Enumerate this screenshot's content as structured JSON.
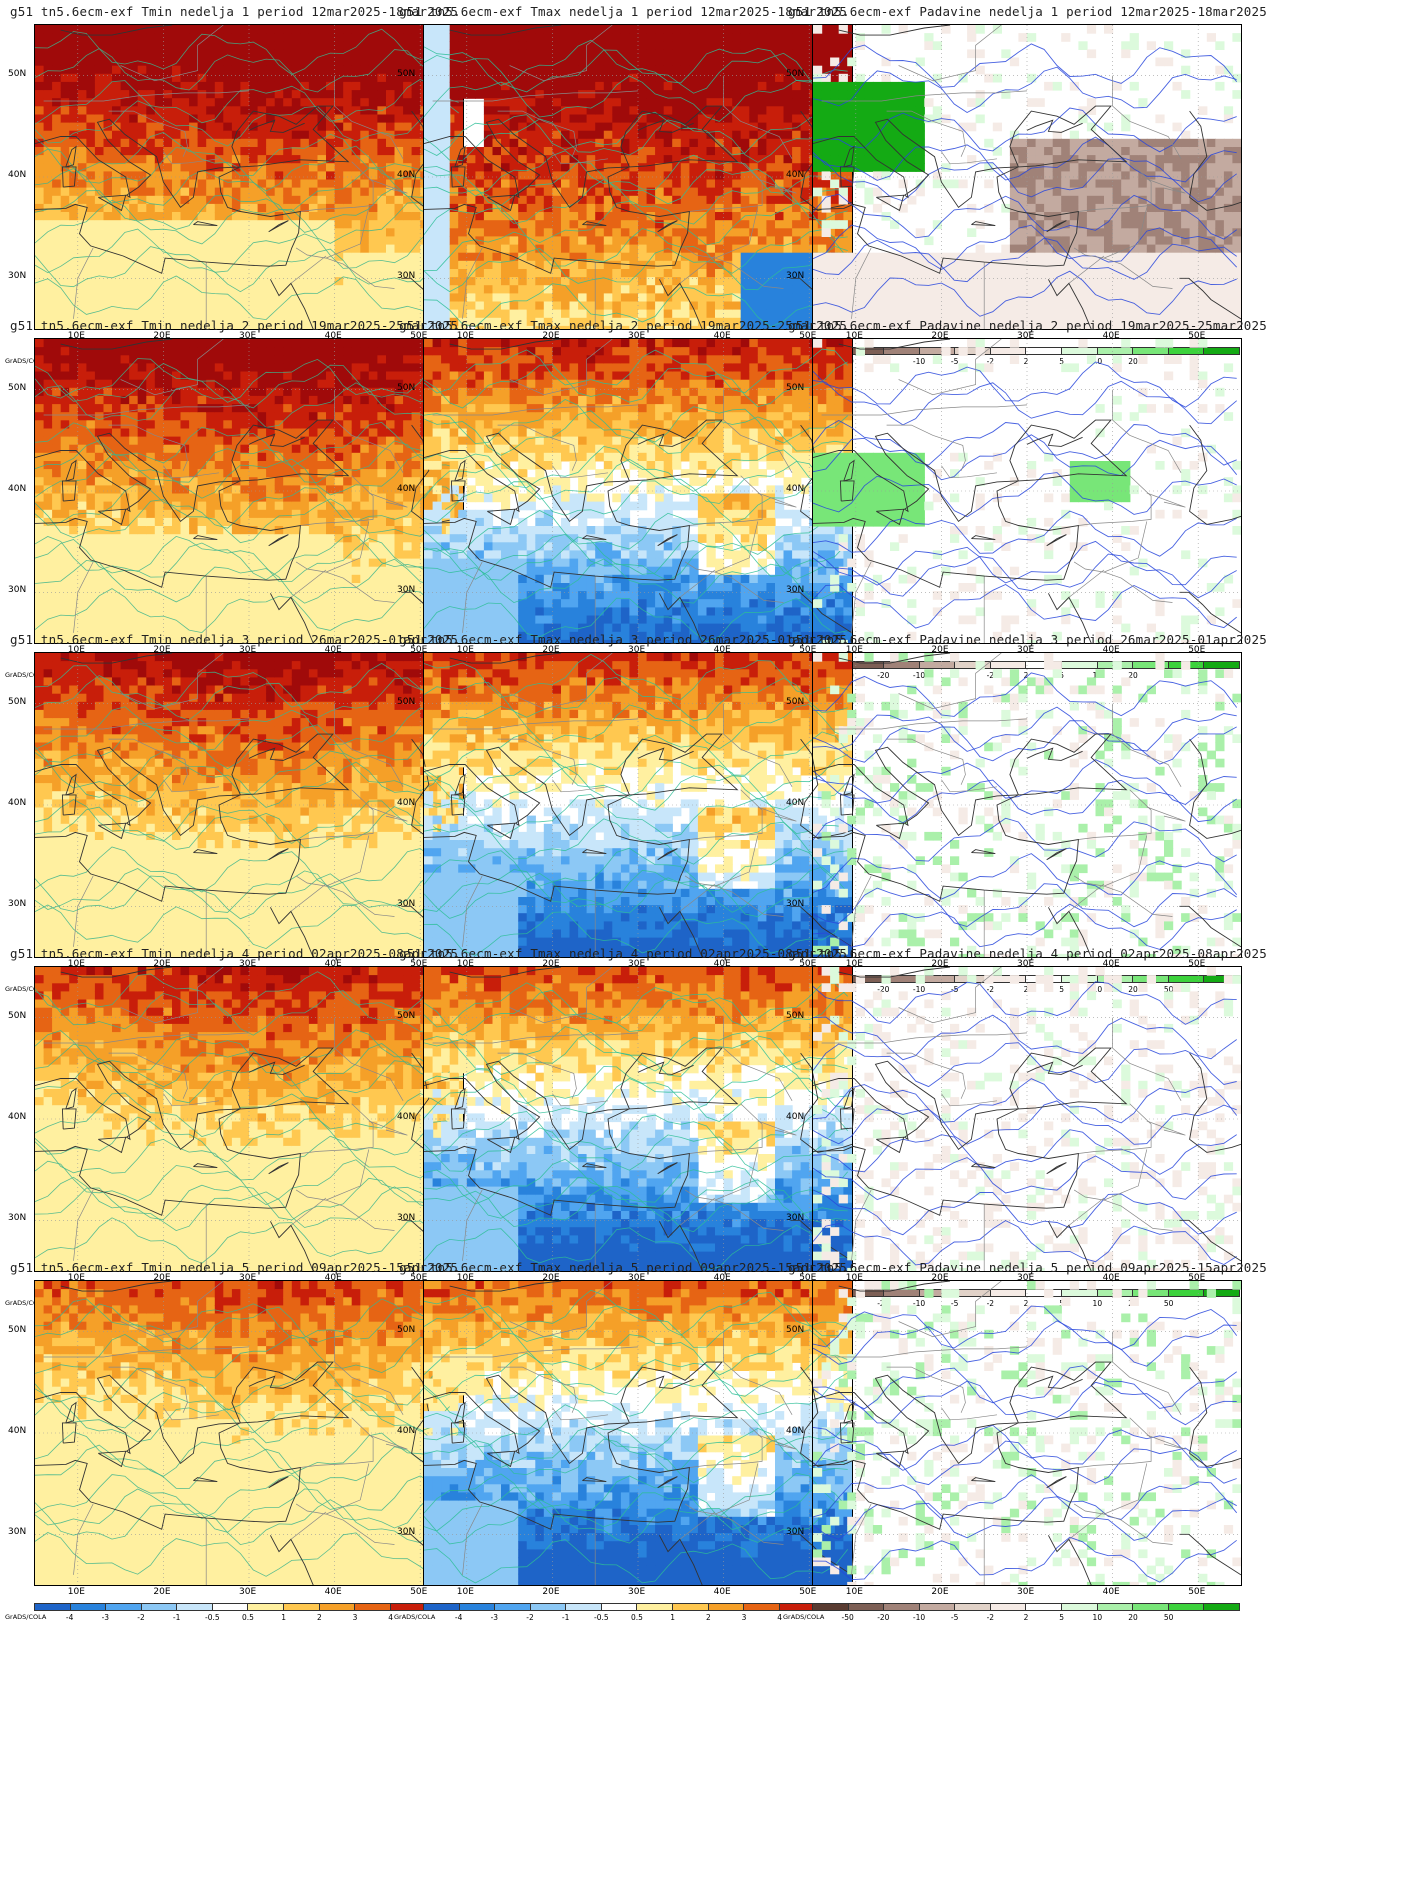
{
  "panels": [
    {
      "title": "g51  tn5.6ecm-exf Tmin nedelja 1 period 12mar2025-18mar2025",
      "type": "tmin",
      "variant": 1
    },
    {
      "title": "g51  tn5.6ecm-exf Tmax nedelja 1 period 12mar2025-18mar2025",
      "type": "tmax",
      "variant": 1
    },
    {
      "title": "g51  tn5.6ecm-exf Padavine nedelja 1 period 12mar2025-18mar2025",
      "type": "prec",
      "variant": 1
    },
    {
      "title": "g51  tn5.6ecm-exf Tmin nedelja 2 period 19mar2025-25mar2025",
      "type": "tmin",
      "variant": 2
    },
    {
      "title": "g51  tn5.6ecm-exf Tmax nedelja 2 period 19mar2025-25mar2025",
      "type": "tmax",
      "variant": 2
    },
    {
      "title": "g51  tn5.6ecm-exf Padavine nedelja 2 period 19mar2025-25mar2025",
      "type": "prec",
      "variant": 2
    },
    {
      "title": "g51  tn5.6ecm-exf Tmin nedelja 3 period 26mar2025-01apr2025",
      "type": "tmin",
      "variant": 3
    },
    {
      "title": "g51  tn5.6ecm-exf Tmax nedelja 3 period 26mar2025-01apr2025",
      "type": "tmax",
      "variant": 3
    },
    {
      "title": "g51  tn5.6ecm-exf Padavine nedelja 3 period 26mar2025-01apr2025",
      "type": "prec",
      "variant": 3
    },
    {
      "title": "g51  tn5.6ecm-exf Tmin nedelja 4 period 02apr2025-08apr2025",
      "type": "tmin",
      "variant": 4
    },
    {
      "title": "g51  tn5.6ecm-exf Tmax nedelja 4 period 02apr2025-08apr2025",
      "type": "tmax",
      "variant": 4
    },
    {
      "title": "g51  tn5.6ecm-exf Padavine nedelja 4 period 02apr2025-08apr2025",
      "type": "prec",
      "variant": 4
    },
    {
      "title": "g51  tn5.6ecm-exf Tmin nedelja 5 period 09apr2025-15apr2025",
      "type": "tmin",
      "variant": 5
    },
    {
      "title": "g51  tn5.6ecm-exf Tmax nedelja 5 period 09apr2025-15apr2025",
      "type": "tmax",
      "variant": 5
    },
    {
      "title": "g51  tn5.6ecm-exf Padavine nedelja 5 period 09apr2025-15apr2025",
      "type": "prec",
      "variant": 5
    }
  ],
  "lat_labels": [
    "50N",
    "40N",
    "30N"
  ],
  "lon_labels": [
    "10E",
    "20E",
    "30E",
    "40E",
    "50E"
  ],
  "credit": "GrADS/COLA",
  "temp_scale": {
    "labels": [
      "-4",
      "-3",
      "-2",
      "-1",
      "-0.5",
      "0.5",
      "1",
      "2",
      "3",
      "4"
    ],
    "colors": [
      "#1e64c8",
      "#2882dc",
      "#50a5f0",
      "#8cc8f5",
      "#c8e6fa",
      "#ffffff",
      "#fff0a0",
      "#ffc850",
      "#f5a028",
      "#e66414",
      "#c81e0a",
      "#a00a0a"
    ]
  },
  "prec_scale": {
    "labels": [
      "-50",
      "-20",
      "-10",
      "-5",
      "-2",
      "2",
      "5",
      "10",
      "20",
      "50"
    ],
    "colors": [
      "#5a3c32",
      "#7d5f55",
      "#a08278",
      "#c3aaa0",
      "#e1d2c8",
      "#f5ebe6",
      "#ffffff",
      "#dcfadc",
      "#aaf0aa",
      "#78e678",
      "#3cd23c",
      "#14aa14"
    ]
  },
  "colors": {
    "tmin_contour": "#3cb48c",
    "tmax_contour": "#2dbe96",
    "prec_contour": "#2846dc",
    "border": "#888888",
    "coast": "#333333"
  }
}
